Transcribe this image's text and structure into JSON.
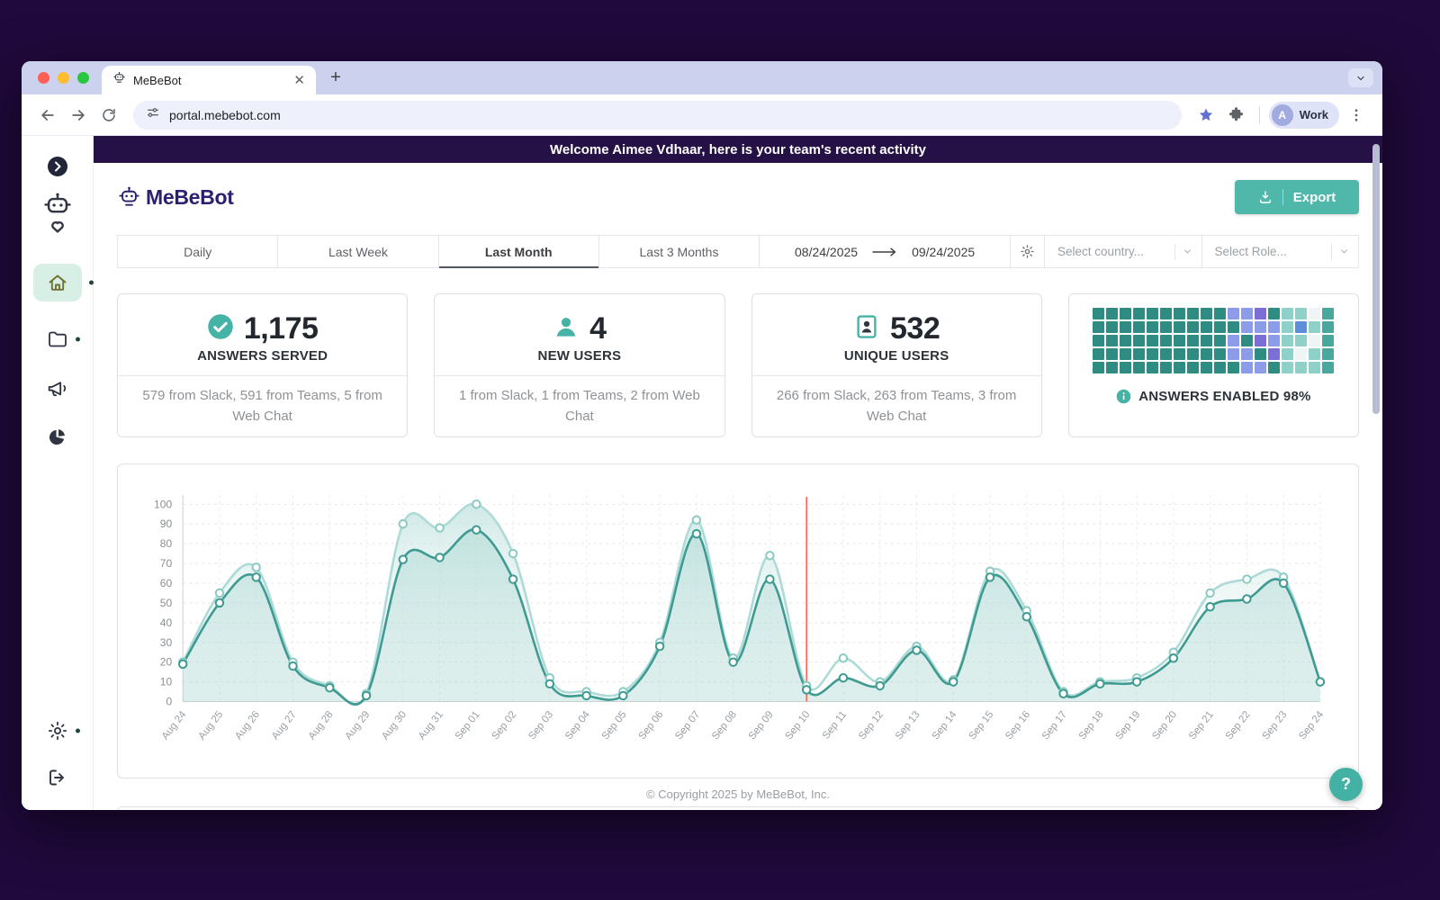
{
  "browser": {
    "tab_title": "MeBeBot",
    "url": "portal.mebebot.com",
    "profile": {
      "initial": "A",
      "label": "Work"
    }
  },
  "banner": {
    "text": "Welcome Aimee Vdhaar, here is your team's recent activity"
  },
  "header": {
    "logo_text": "MeBeBot",
    "export_label": "Export"
  },
  "filters": {
    "tabs": [
      {
        "label": "Daily",
        "active": false
      },
      {
        "label": "Last Week",
        "active": false
      },
      {
        "label": "Last Month",
        "active": true
      },
      {
        "label": "Last 3 Months",
        "active": false
      }
    ],
    "date_from": "08/24/2025",
    "date_to": "09/24/2025",
    "country_placeholder": "Select country...",
    "role_placeholder": "Select Role..."
  },
  "stats": [
    {
      "icon": "check-circle",
      "value": "1,175",
      "label": "ANSWERS SERVED",
      "detail": "579 from Slack, 591 from Teams, 5 from Web Chat"
    },
    {
      "icon": "user",
      "value": "4",
      "label": "NEW USERS",
      "detail": "1 from Slack, 1 from Teams, 2 from Web Chat"
    },
    {
      "icon": "id-badge",
      "value": "532",
      "label": "UNIQUE USERS",
      "detail": "266 from Slack, 263 from Teams, 3 from Web Chat"
    }
  ],
  "answers_enabled": {
    "label": "ANSWERS ENABLED 98%",
    "info_icon": "info-icon",
    "heatmap": {
      "palette": [
        "#2f8c82",
        "#49a89d",
        "#8fd0c9",
        "#c9e8e4",
        "#8c9ce8",
        "#7b6fd6",
        "#5d8fd9",
        "#eef5f4"
      ],
      "grid": [
        [
          0,
          0,
          0,
          0,
          0,
          0,
          0,
          0,
          0,
          0,
          4,
          4,
          5,
          0,
          2,
          2,
          7,
          1
        ],
        [
          0,
          0,
          0,
          0,
          0,
          0,
          0,
          0,
          0,
          0,
          0,
          4,
          4,
          4,
          2,
          6,
          2,
          1
        ],
        [
          0,
          0,
          0,
          0,
          0,
          0,
          0,
          0,
          0,
          0,
          4,
          0,
          5,
          4,
          2,
          2,
          7,
          1
        ],
        [
          0,
          0,
          0,
          0,
          0,
          0,
          0,
          0,
          0,
          0,
          4,
          4,
          0,
          5,
          2,
          7,
          2,
          1
        ],
        [
          0,
          0,
          0,
          0,
          0,
          0,
          0,
          0,
          0,
          0,
          0,
          4,
          4,
          0,
          2,
          2,
          2,
          1
        ]
      ]
    }
  },
  "chart_data": {
    "type": "line",
    "title": "",
    "xlabel": "",
    "ylabel": "",
    "ylim": [
      0,
      100
    ],
    "y_tick_step": 10,
    "grid": true,
    "legend_position": "none",
    "x": [
      "Aug 24",
      "Aug 25",
      "Aug 26",
      "Aug 27",
      "Aug 28",
      "Aug 29",
      "Aug 30",
      "Aug 31",
      "Sep 01",
      "Sep 02",
      "Sep 03",
      "Sep 04",
      "Sep 05",
      "Sep 06",
      "Sep 07",
      "Sep 08",
      "Sep 09",
      "Sep 10",
      "Sep 11",
      "Sep 12",
      "Sep 13",
      "Sep 14",
      "Sep 15",
      "Sep 16",
      "Sep 17",
      "Sep 18",
      "Sep 19",
      "Sep 20",
      "Sep 21",
      "Sep 22",
      "Sep 23",
      "Sep 24"
    ],
    "series": [
      {
        "name": "series-light-teal",
        "color": "#aedbd7",
        "values": [
          20,
          55,
          68,
          20,
          8,
          4,
          90,
          88,
          100,
          75,
          12,
          5,
          5,
          30,
          92,
          22,
          74,
          8,
          22,
          10,
          28,
          11,
          66,
          46,
          5,
          10,
          12,
          25,
          55,
          62,
          63,
          10
        ]
      },
      {
        "name": "series-dark-teal",
        "color": "#3f9b92",
        "values": [
          19,
          50,
          63,
          18,
          7,
          3,
          72,
          73,
          87,
          62,
          9,
          3,
          3,
          28,
          85,
          20,
          62,
          6,
          12,
          8,
          26,
          10,
          63,
          43,
          4,
          9,
          10,
          22,
          48,
          52,
          60,
          10
        ]
      }
    ],
    "annotations": [
      {
        "type": "vline",
        "x": "Sep 10",
        "color": "#ff6458"
      }
    ]
  },
  "footer": {
    "copyright": "© Copyright 2025 by MeBeBot, Inc."
  },
  "help": {
    "label": "?"
  }
}
